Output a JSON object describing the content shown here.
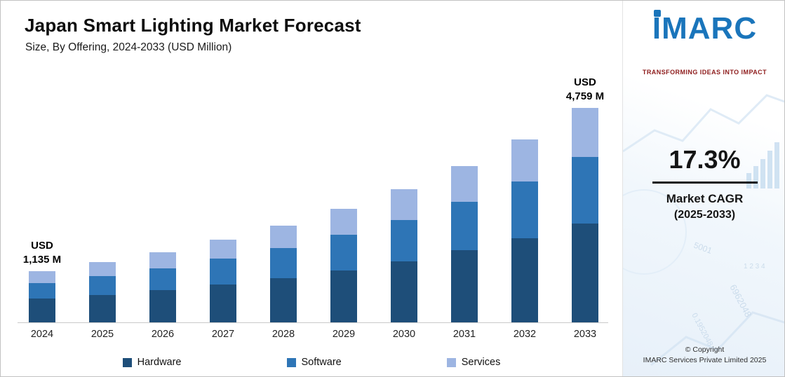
{
  "header": {
    "title": "Japan Smart Lighting Market Forecast",
    "subtitle": "Size, By Offering, 2024-2033 (USD Million)"
  },
  "chart_data": {
    "type": "bar",
    "stacked": true,
    "title": "Japan Smart Lighting Market Forecast",
    "subtitle": "Size, By Offering, 2024-2033 (USD Million)",
    "xlabel": "",
    "ylabel": "USD Million",
    "categories": [
      "2024",
      "2025",
      "2026",
      "2027",
      "2028",
      "2029",
      "2030",
      "2031",
      "2032",
      "2033"
    ],
    "series": [
      {
        "name": "Hardware",
        "color": "#1e4e79",
        "values": [
          522,
          612,
          718,
          842,
          988,
          1159,
          1360,
          1595,
          1871,
          2189
        ]
      },
      {
        "name": "Software",
        "color": "#2e75b6",
        "values": [
          352,
          413,
          484,
          568,
          666,
          781,
          916,
          1075,
          1261,
          1475
        ]
      },
      {
        "name": "Services",
        "color": "#9db5e2",
        "values": [
          261,
          306,
          359,
          421,
          494,
          580,
          680,
          797,
          935,
          1095
        ]
      }
    ],
    "totals": [
      1135,
      1331,
      1561,
      1831,
      2148,
      2520,
      2956,
      3467,
      4067,
      4759
    ],
    "annotations": [
      {
        "category": "2024",
        "line1": "USD",
        "line2": "1,135 M"
      },
      {
        "category": "2033",
        "line1": "USD",
        "line2": "4,759 M"
      }
    ],
    "ylim": [
      0,
      4800
    ],
    "grid": false,
    "legend_position": "bottom"
  },
  "sidebar": {
    "logo_text": "IMARC",
    "tagline": "TRANSFORMING IDEAS INTO IMPACT",
    "cagr_value": "17.3%",
    "cagr_label": "Market CAGR",
    "cagr_period": "(2025-2033)",
    "copyright_line1": "© Copyright",
    "copyright_line2": "IMARC Services Private Limited 2025",
    "decor_numbers": [
      "6962048",
      "0.1952048",
      "5001",
      "1 2 3 4"
    ]
  },
  "colors": {
    "hardware": "#1e4e79",
    "software": "#2e75b6",
    "services": "#9db5e2",
    "logo_blue": "#1a75bb",
    "tagline_red": "#8e1c1c",
    "axis_gray": "#c9c9c9"
  }
}
